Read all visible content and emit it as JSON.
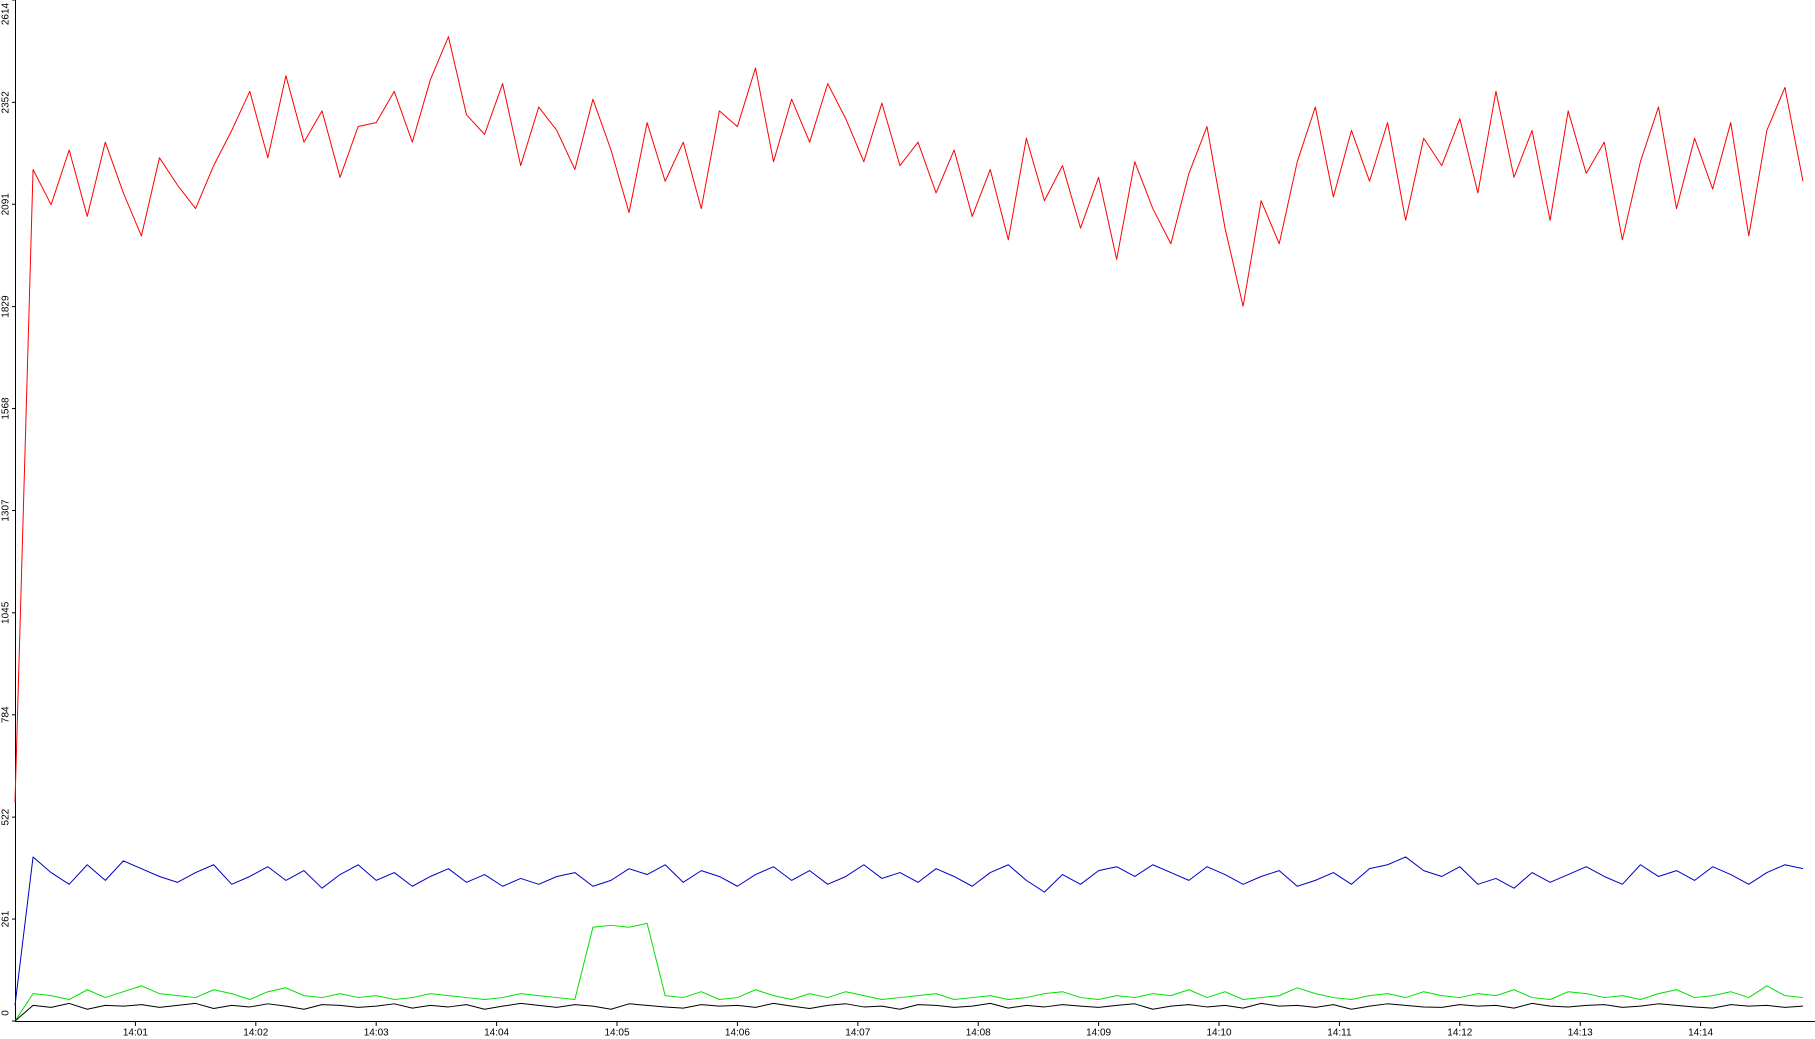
{
  "chart_data": {
    "type": "line",
    "x": [
      0,
      0.15,
      0.3,
      0.45,
      0.6,
      0.75,
      0.9,
      1.05,
      1.2,
      1.35,
      1.5,
      1.65,
      1.8,
      1.95,
      2.1,
      2.25,
      2.4,
      2.55,
      2.7,
      2.85,
      3,
      3.15,
      3.3,
      3.45,
      3.6,
      3.75,
      3.9,
      4.05,
      4.2,
      4.35,
      4.5,
      4.65,
      4.8,
      4.95,
      5.1,
      5.25,
      5.4,
      5.55,
      5.7,
      5.85,
      6,
      6.15,
      6.3,
      6.45,
      6.6,
      6.75,
      6.9,
      7.05,
      7.2,
      7.35,
      7.5,
      7.65,
      7.8,
      7.95,
      8.1,
      8.25,
      8.4,
      8.55,
      8.7,
      8.85,
      9,
      9.15,
      9.3,
      9.45,
      9.6,
      9.75,
      9.9,
      10.05,
      10.2,
      10.35,
      10.5,
      10.65,
      10.8,
      10.95,
      11.1,
      11.25,
      11.4,
      11.55,
      11.7,
      11.85,
      12,
      12.15,
      12.3,
      12.45,
      12.6,
      12.75,
      12.9,
      13.05,
      13.2,
      13.35,
      13.5,
      13.65,
      13.8,
      13.95,
      14.1,
      14.25,
      14.4,
      14.55,
      14.7,
      14.85
    ],
    "series": [
      {
        "color": "#ff0000",
        "values": [
          560,
          2180,
          2090,
          2230,
          2060,
          2250,
          2120,
          2010,
          2210,
          2140,
          2080,
          2190,
          2280,
          2380,
          2210,
          2420,
          2250,
          2330,
          2160,
          2290,
          2300,
          2380,
          2250,
          2410,
          2520,
          2320,
          2270,
          2400,
          2190,
          2340,
          2280,
          2180,
          2360,
          2230,
          2070,
          2300,
          2150,
          2250,
          2080,
          2330,
          2290,
          2440,
          2200,
          2360,
          2250,
          2400,
          2310,
          2200,
          2350,
          2190,
          2250,
          2120,
          2230,
          2060,
          2180,
          2000,
          2260,
          2100,
          2190,
          2030,
          2160,
          1950,
          2200,
          2080,
          1990,
          2170,
          2290,
          2030,
          1830,
          2100,
          1990,
          2200,
          2340,
          2110,
          2280,
          2150,
          2300,
          2050,
          2260,
          2190,
          2310,
          2120,
          2380,
          2160,
          2280,
          2050,
          2330,
          2170,
          2250,
          2000,
          2200,
          2340,
          2080,
          2260,
          2130,
          2300,
          2010,
          2280,
          2390,
          2150
        ]
      },
      {
        "color": "#0000cc",
        "values": [
          40,
          420,
          380,
          350,
          400,
          360,
          410,
          390,
          370,
          355,
          380,
          400,
          350,
          370,
          395,
          360,
          385,
          340,
          375,
          400,
          360,
          380,
          345,
          370,
          390,
          355,
          375,
          345,
          365,
          350,
          370,
          380,
          345,
          360,
          390,
          375,
          400,
          355,
          385,
          370,
          345,
          375,
          395,
          360,
          385,
          350,
          370,
          400,
          365,
          380,
          355,
          390,
          370,
          345,
          380,
          400,
          360,
          330,
          375,
          350,
          385,
          395,
          370,
          400,
          380,
          360,
          395,
          375,
          350,
          370,
          385,
          345,
          360,
          380,
          350,
          390,
          400,
          420,
          385,
          370,
          395,
          350,
          365,
          340,
          380,
          355,
          375,
          395,
          370,
          350,
          400,
          370,
          385,
          360,
          395,
          375,
          350,
          380,
          400,
          390
        ]
      },
      {
        "color": "#00e000",
        "values": [
          0,
          70,
          65,
          55,
          80,
          60,
          75,
          90,
          70,
          65,
          60,
          80,
          70,
          55,
          75,
          85,
          65,
          60,
          70,
          60,
          65,
          55,
          60,
          70,
          65,
          60,
          55,
          60,
          70,
          65,
          60,
          55,
          240,
          245,
          240,
          250,
          65,
          60,
          75,
          55,
          60,
          80,
          65,
          55,
          70,
          60,
          75,
          65,
          55,
          60,
          65,
          70,
          55,
          60,
          65,
          55,
          60,
          70,
          75,
          60,
          55,
          65,
          60,
          70,
          65,
          80,
          60,
          75,
          55,
          60,
          65,
          85,
          70,
          60,
          55,
          65,
          70,
          60,
          75,
          65,
          60,
          70,
          65,
          80,
          60,
          55,
          75,
          70,
          60,
          65,
          55,
          70,
          80,
          60,
          65,
          75,
          60,
          90,
          65,
          60
        ]
      },
      {
        "color": "#000000",
        "values": [
          0,
          40,
          35,
          45,
          30,
          40,
          38,
          42,
          35,
          40,
          45,
          32,
          40,
          36,
          44,
          38,
          30,
          42,
          40,
          35,
          38,
          44,
          33,
          40,
          36,
          42,
          30,
          38,
          45,
          40,
          35,
          42,
          38,
          30,
          44,
          40,
          36,
          33,
          42,
          38,
          40,
          35,
          45,
          38,
          32,
          40,
          44,
          36,
          38,
          30,
          42,
          40,
          35,
          38,
          45,
          33,
          40,
          36,
          42,
          38,
          35,
          40,
          44,
          30,
          38,
          42,
          36,
          40,
          33,
          45,
          38,
          40,
          35,
          42,
          30,
          38,
          44,
          40,
          36,
          35,
          42,
          38,
          40,
          33,
          45,
          38,
          36,
          40,
          42,
          35,
          38,
          44,
          40,
          36,
          33,
          42,
          38,
          40,
          35,
          38
        ]
      }
    ],
    "xlim": [
      0,
      14.95
    ],
    "xticks": [
      {
        "value": 1,
        "label": "14:01"
      },
      {
        "value": 2,
        "label": "14:02"
      },
      {
        "value": 3,
        "label": "14:03"
      },
      {
        "value": 4,
        "label": "14:04"
      },
      {
        "value": 5,
        "label": "14:05"
      },
      {
        "value": 6,
        "label": "14:06"
      },
      {
        "value": 7,
        "label": "14:07"
      },
      {
        "value": 8,
        "label": "14:08"
      },
      {
        "value": 9,
        "label": "14:09"
      },
      {
        "value": 10,
        "label": "14:10"
      },
      {
        "value": 11,
        "label": "14:11"
      },
      {
        "value": 12,
        "label": "14:12"
      },
      {
        "value": 13,
        "label": "14:13"
      },
      {
        "value": 14,
        "label": "14:14"
      }
    ],
    "ylim": [
      0,
      2614
    ],
    "yticks": [
      0,
      261,
      522,
      784,
      1045,
      1307,
      1568,
      1829,
      2091,
      2352,
      2614
    ]
  }
}
